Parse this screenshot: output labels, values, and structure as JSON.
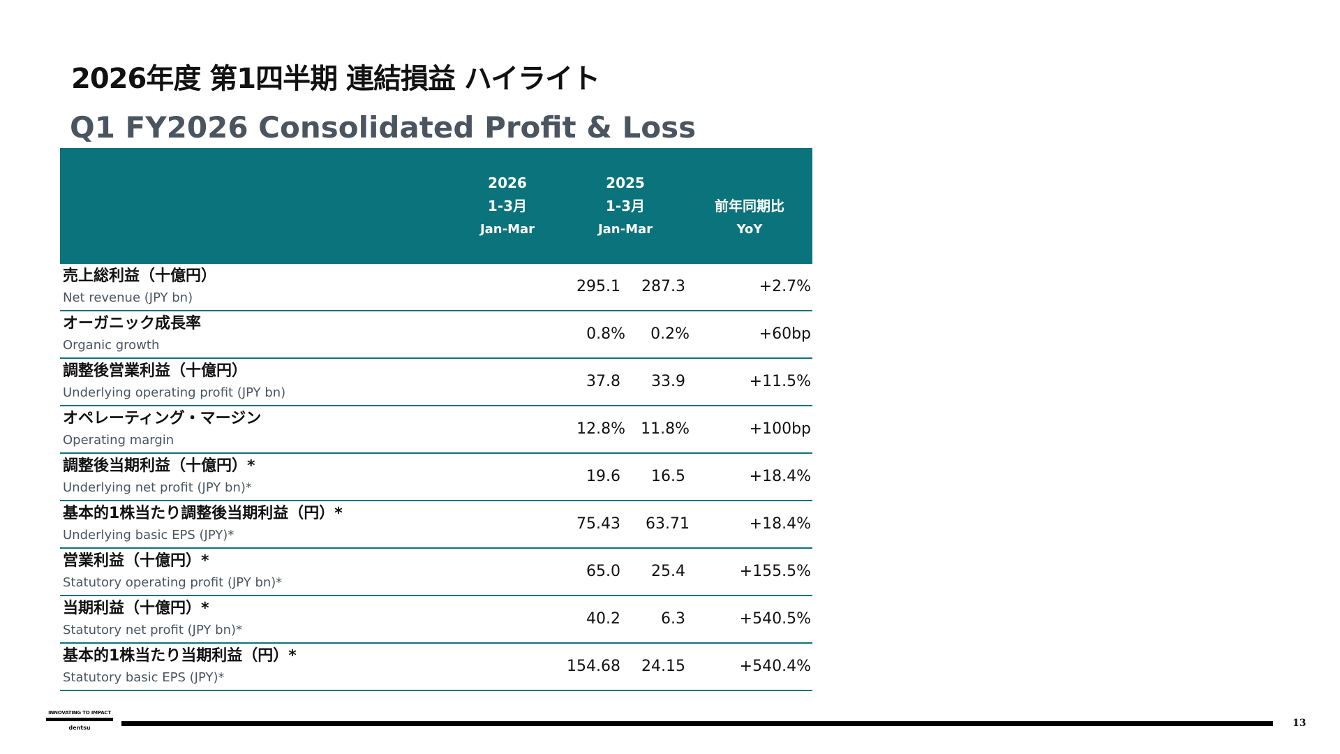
{
  "title_jp": "2026年度 第1四半期 連結損益 ハイライト",
  "title_en": "Q1 FY2026 Consolidated Profit & Loss",
  "header": {
    "col_2026": {
      "year": "2026",
      "months": "1-3月",
      "period": "Jan-Mar"
    },
    "col_2025": {
      "year": "2025",
      "months": "1-3月",
      "period": "Jan-Mar"
    },
    "col_yoy": {
      "jp": "前年同期比",
      "en": "YoY"
    }
  },
  "rows": [
    {
      "jp": "売上総利益（十億円）",
      "en": "Net revenue (JPY bn)",
      "v2026": "295.1",
      "v2025": "287.3",
      "yoy": "+2.7%"
    },
    {
      "jp": "オーガニック成長率",
      "en": "Organic growth",
      "v2026": "0.8%",
      "v2025": "0.2%",
      "yoy": "+60bp"
    },
    {
      "jp": "調整後営業利益（十億円）",
      "en": "Underlying operating profit (JPY bn)",
      "v2026": "37.8",
      "v2025": "33.9",
      "yoy": "+11.5%"
    },
    {
      "jp": "オペレーティング・マージン",
      "en": "Operating margin",
      "v2026": "12.8%",
      "v2025": "11.8%",
      "yoy": "+100bp"
    },
    {
      "jp": "調整後当期利益（十億円）*",
      "en": "Underlying net profit (JPY bn)*",
      "v2026": "19.6",
      "v2025": "16.5",
      "yoy": "+18.4%"
    },
    {
      "jp": "基本的1株当たり調整後当期利益（円）*",
      "en": "Underlying basic EPS (JPY)*",
      "v2026": "75.43",
      "v2025": "63.71",
      "yoy": "+18.4%"
    },
    {
      "jp": "営業利益（十億円）*",
      "en": "Statutory operating profit (JPY bn)*",
      "v2026": "65.0",
      "v2025": "25.4",
      "yoy": "+155.5%"
    },
    {
      "jp": "当期利益（十億円）*",
      "en": "Statutory net profit (JPY bn)*",
      "v2026": "40.2",
      "v2025": "6.3",
      "yoy": "+540.5%"
    },
    {
      "jp": "基本的1株当たり当期利益（円）*",
      "en": "Statutory basic EPS (JPY)*",
      "v2026": "154.68",
      "v2025": "24.15",
      "yoy": "+540.4%"
    }
  ],
  "footer": {
    "logo_tagline": "INNOVATING TO IMPACT",
    "logo_name": "dentsu",
    "page_number": "13"
  },
  "colors": {
    "header_bg": "#0b737c",
    "row_divider": "#0b737c",
    "subtitle_gray": "#4a5560"
  }
}
